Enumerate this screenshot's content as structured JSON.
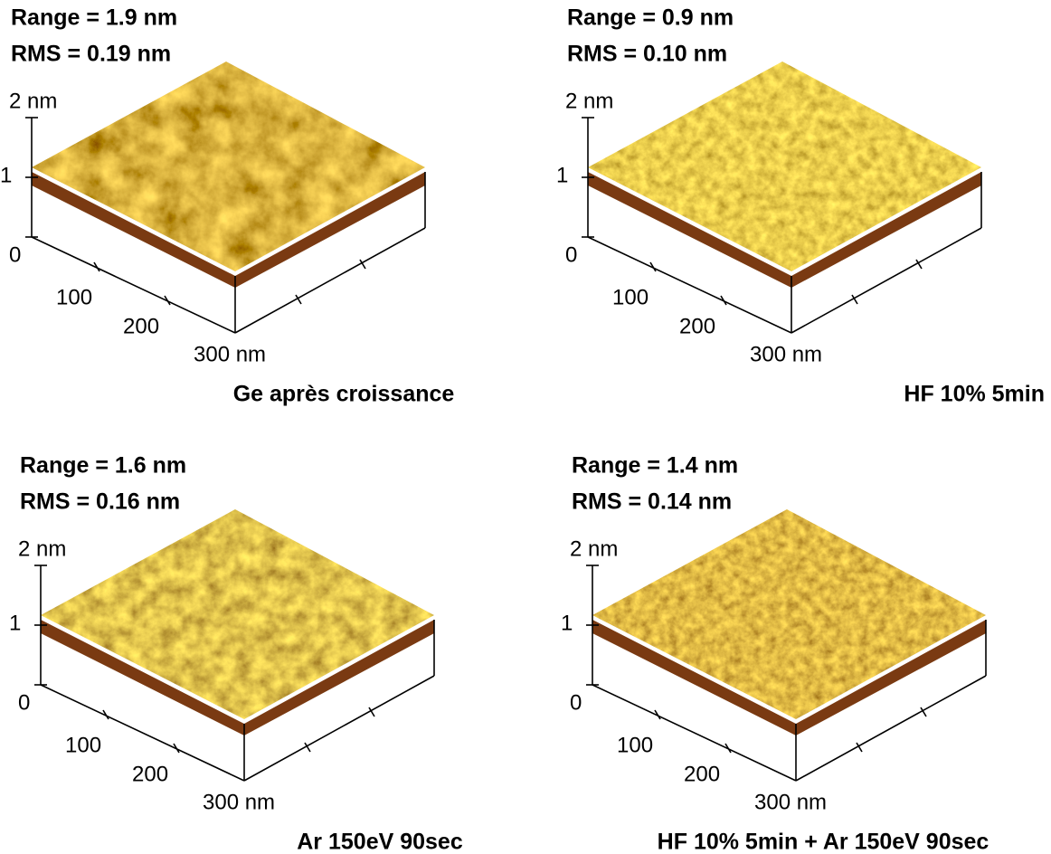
{
  "panels": [
    {
      "range": "Range = 1.9 nm",
      "rms": "RMS = 0.19 nm",
      "z_ticks": [
        "2 nm",
        "1",
        "0"
      ],
      "x_ticks": [
        "100",
        "200",
        "300 nm"
      ],
      "caption": "Ge après croissance"
    },
    {
      "range": "Range = 0.9 nm",
      "rms": "RMS = 0.10 nm",
      "z_ticks": [
        "2 nm",
        "1",
        "0"
      ],
      "x_ticks": [
        "100",
        "200",
        "300 nm"
      ],
      "caption": "HF 10% 5min"
    },
    {
      "range": "Range = 1.6 nm",
      "rms": "RMS = 0.16 nm",
      "z_ticks": [
        "2 nm",
        "1",
        "0"
      ],
      "x_ticks": [
        "100",
        "200",
        "300 nm"
      ],
      "caption": "Ar 150eV 90sec"
    },
    {
      "range": "Range = 1.4 nm",
      "rms": "RMS = 0.14 nm",
      "z_ticks": [
        "2 nm",
        "1",
        "0"
      ],
      "x_ticks": [
        "100",
        "200",
        "300 nm"
      ],
      "caption": "HF 10% 5min + Ar 150eV 90sec"
    }
  ]
}
